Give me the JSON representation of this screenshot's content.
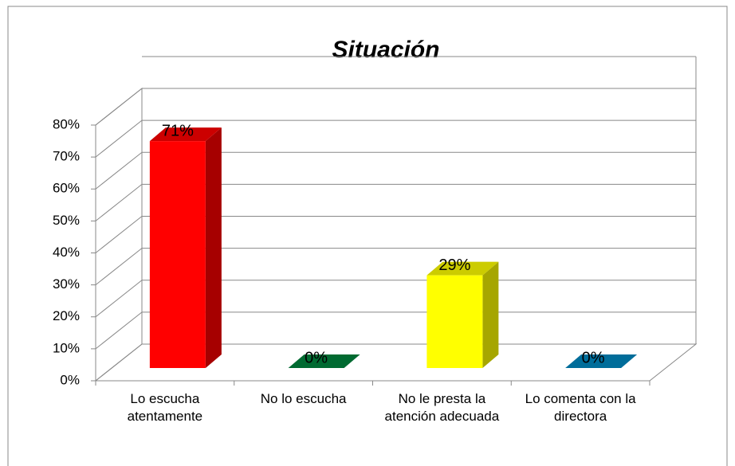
{
  "chart_data": {
    "type": "bar3d",
    "title": "Situación",
    "categories": [
      "Lo escucha atentamente",
      "No lo escucha",
      "No le presta la atención adecuada",
      "Lo comenta con la directora"
    ],
    "values": [
      71,
      0,
      29,
      0
    ],
    "value_labels": [
      "71%",
      "0%",
      "29%",
      "0%"
    ],
    "colors": [
      "#ff0000",
      "#00843d",
      "#ffff00",
      "#0088c0"
    ],
    "ylim": [
      0,
      80
    ],
    "yticks": [
      {
        "value": 0,
        "label": "0%"
      },
      {
        "value": 10,
        "label": "10%"
      },
      {
        "value": 20,
        "label": "20%"
      },
      {
        "value": 30,
        "label": "30%"
      },
      {
        "value": 40,
        "label": "40%"
      },
      {
        "value": 50,
        "label": "50%"
      },
      {
        "value": 60,
        "label": "60%"
      },
      {
        "value": 70,
        "label": "70%"
      },
      {
        "value": 80,
        "label": "80%"
      }
    ],
    "grid": true
  }
}
